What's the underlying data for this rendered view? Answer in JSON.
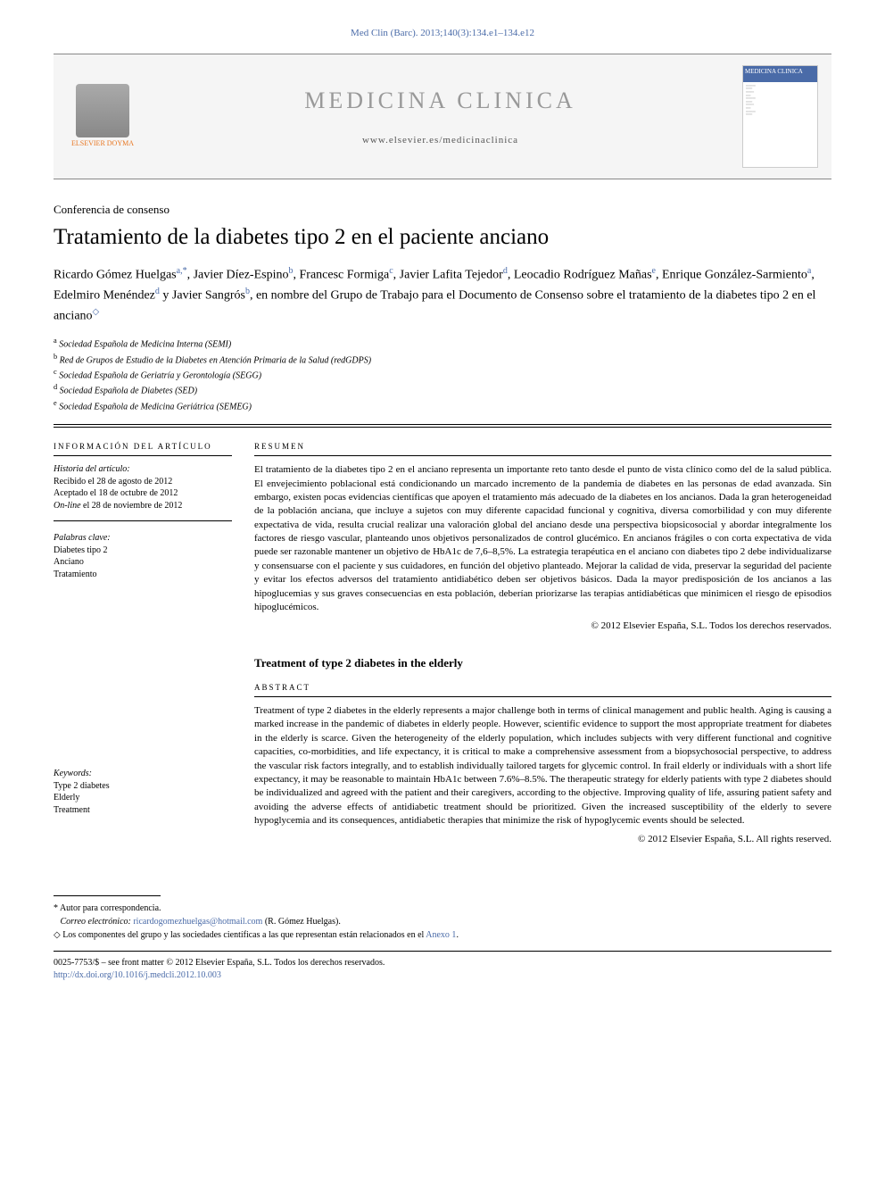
{
  "citation": "Med Clin (Barc). 2013;140(3):134.e1–134.e12",
  "journal": {
    "name": "MEDICINA CLINICA",
    "url": "www.elsevier.es/medicinaclinica",
    "publisher": "ELSEVIER DOYMA",
    "cover_title": "MEDICINA CLINICA"
  },
  "article": {
    "type": "Conferencia de consenso",
    "title": "Tratamiento de la diabetes tipo 2 en el paciente anciano",
    "authors_html": "Ricardo Gómez Huelgas",
    "group_line": "en nombre del Grupo de Trabajo para el Documento de Consenso sobre el tratamiento de la diabetes tipo 2 en el anciano"
  },
  "authors": [
    {
      "name": "Ricardo Gómez Huelgas",
      "sup": "a,*"
    },
    {
      "name": "Javier Díez-Espino",
      "sup": "b"
    },
    {
      "name": "Francesc Formiga",
      "sup": "c"
    },
    {
      "name": "Javier Lafita Tejedor",
      "sup": "d"
    },
    {
      "name": "Leocadio Rodríguez Mañas",
      "sup": "e"
    },
    {
      "name": "Enrique González-Sarmiento",
      "sup": "a"
    },
    {
      "name": "Edelmiro Menéndez",
      "sup": "d"
    },
    {
      "name": "Javier Sangrós",
      "sup": "b"
    }
  ],
  "affiliations": [
    {
      "sup": "a",
      "text": "Sociedad Española de Medicina Interna (SEMI)"
    },
    {
      "sup": "b",
      "text": "Red de Grupos de Estudio de la Diabetes en Atención Primaria de la Salud (redGDPS)"
    },
    {
      "sup": "c",
      "text": "Sociedad Española de Geriatría y Gerontología (SEGG)"
    },
    {
      "sup": "d",
      "text": "Sociedad Española de Diabetes (SED)"
    },
    {
      "sup": "e",
      "text": "Sociedad Española de Medicina Geriátrica (SEMEG)"
    }
  ],
  "info": {
    "label": "INFORMACIÓN DEL ARTÍCULO",
    "history_label": "Historia del artículo:",
    "received": "Recibido el 28 de agosto de 2012",
    "accepted": "Aceptado el 18 de octubre de 2012",
    "online": "On-line el 28 de noviembre de 2012",
    "keywords_es_label": "Palabras clave:",
    "keywords_es": [
      "Diabetes tipo 2",
      "Anciano",
      "Tratamiento"
    ],
    "keywords_en_label": "Keywords:",
    "keywords_en": [
      "Type 2 diabetes",
      "Elderly",
      "Treatment"
    ]
  },
  "resumen": {
    "label": "RESUMEN",
    "text": "El tratamiento de la diabetes tipo 2 en el anciano representa un importante reto tanto desde el punto de vista clínico como del de la salud pública. El envejecimiento poblacional está condicionando un marcado incremento de la pandemia de diabetes en las personas de edad avanzada. Sin embargo, existen pocas evidencias científicas que apoyen el tratamiento más adecuado de la diabetes en los ancianos. Dada la gran heterogeneidad de la población anciana, que incluye a sujetos con muy diferente capacidad funcional y cognitiva, diversa comorbilidad y con muy diferente expectativa de vida, resulta crucial realizar una valoración global del anciano desde una perspectiva biopsicosocial y abordar integralmente los factores de riesgo vascular, planteando unos objetivos personalizados de control glucémico. En ancianos frágiles o con corta expectativa de vida puede ser razonable mantener un objetivo de HbA1c de 7,6–8,5%. La estrategia terapéutica en el anciano con diabetes tipo 2 debe individualizarse y consensuarse con el paciente y sus cuidadores, en función del objetivo planteado. Mejorar la calidad de vida, preservar la seguridad del paciente y evitar los efectos adversos del tratamiento antidiabético deben ser objetivos básicos. Dada la mayor predisposición de los ancianos a las hipoglucemias y sus graves consecuencias en esta población, deberían priorizarse las terapias antidiabéticas que minimicen el riesgo de episodios hipoglucémicos.",
    "copyright": "© 2012 Elsevier España, S.L. Todos los derechos reservados."
  },
  "abstract": {
    "title": "Treatment of type 2 diabetes in the elderly",
    "label": "ABSTRACT",
    "text": "Treatment of type 2 diabetes in the elderly represents a major challenge both in terms of clinical management and public health. Aging is causing a marked increase in the pandemic of diabetes in elderly people. However, scientific evidence to support the most appropriate treatment for diabetes in the elderly is scarce. Given the heterogeneity of the elderly population, which includes subjects with very different functional and cognitive capacities, co-morbidities, and life expectancy, it is critical to make a comprehensive assessment from a biopsychosocial perspective, to address the vascular risk factors integrally, and to establish individually tailored targets for glycemic control. In frail elderly or individuals with a short life expectancy, it may be reasonable to maintain HbA1c between 7.6%–8.5%. The therapeutic strategy for elderly patients with type 2 diabetes should be individualized and agreed with the patient and their caregivers, according to the objective. Improving quality of life, assuring patient safety and avoiding the adverse effects of antidiabetic treatment should be prioritized. Given the increased susceptibility of the elderly to severe hypoglycemia and its consequences, antidiabetic therapies that minimize the risk of hypoglycemic events should be selected.",
    "copyright": "© 2012 Elsevier España, S.L. All rights reserved."
  },
  "footnotes": {
    "corresp_label": "* Autor para correspondencia.",
    "email_label": "Correo electrónico:",
    "email": "ricardogomezhuelgas@hotmail.com",
    "email_person": "(R. Gómez Huelgas).",
    "diamond": "◇ Los componentes del grupo y las sociedades científicas a las que representan están relacionados en el ",
    "anexo": "Anexo 1",
    "period": "."
  },
  "issn": {
    "line": "0025-7753/$ – see front matter © 2012 Elsevier España, S.L. Todos los derechos reservados.",
    "doi": "http://dx.doi.org/10.1016/j.medcli.2012.10.003"
  }
}
